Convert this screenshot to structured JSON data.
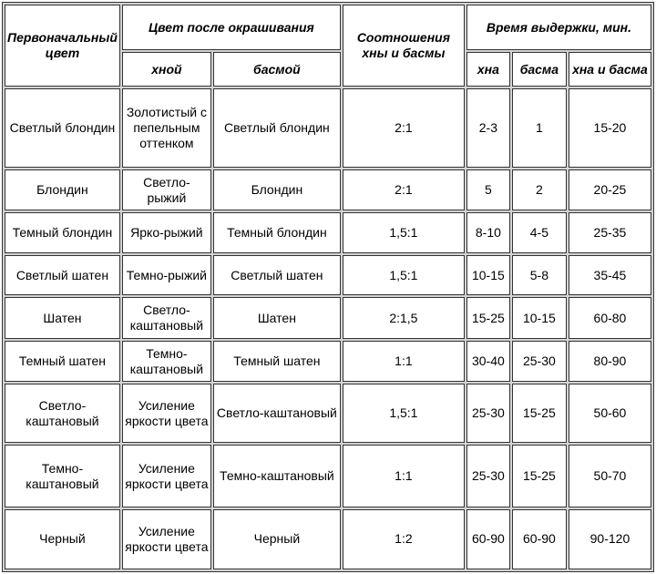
{
  "headers": {
    "original_color": "Первоначальный цвет",
    "color_after": "Цвет после окрашивания",
    "henna": "хной",
    "basma": "басмой",
    "ratio": "Соотношения хны и басмы",
    "time": "Время выдержки, мин.",
    "time_henna": "хна",
    "time_basma": "басма",
    "time_both": "хна и басма"
  },
  "rows": [
    {
      "original": "Светлый блондин",
      "henna": "Золотистый с пепельным оттенком",
      "basma": "Светлый блондин",
      "ratio": "2:1",
      "t_henna": "2-3",
      "t_basma": "1",
      "t_both": "15-20"
    },
    {
      "original": "Блондин",
      "henna": "Светло-рыжий",
      "basma": "Блондин",
      "ratio": "2:1",
      "t_henna": "5",
      "t_basma": "2",
      "t_both": "20-25"
    },
    {
      "original": "Темный блондин",
      "henna": "Ярко-рыжий",
      "basma": "Темный блондин",
      "ratio": "1,5:1",
      "t_henna": "8-10",
      "t_basma": "4-5",
      "t_both": "25-35"
    },
    {
      "original": "Светлый шатен",
      "henna": "Темно-рыжий",
      "basma": "Светлый шатен",
      "ratio": "1,5:1",
      "t_henna": "10-15",
      "t_basma": "5-8",
      "t_both": "35-45"
    },
    {
      "original": "Шатен",
      "henna": "Светло-каштановый",
      "basma": "Шатен",
      "ratio": "2:1,5",
      "t_henna": "15-25",
      "t_basma": "10-15",
      "t_both": "60-80"
    },
    {
      "original": "Темный шатен",
      "henna": "Темно-каштановый",
      "basma": "Темный шатен",
      "ratio": "1:1",
      "t_henna": "30-40",
      "t_basma": "25-30",
      "t_both": "80-90"
    },
    {
      "original": "Светло-каштановый",
      "henna": "Усиление яркости цвета",
      "basma": "Светло-каштановый",
      "ratio": "1,5:1",
      "t_henna": "25-30",
      "t_basma": "15-25",
      "t_both": "50-60"
    },
    {
      "original": "Темно-каштановый",
      "henna": "Усиление яркости цвета",
      "basma": "Темно-каштановый",
      "ratio": "1:1",
      "t_henna": "25-30",
      "t_basma": "15-25",
      "t_both": "50-70"
    },
    {
      "original": "Черный",
      "henna": "Усиление яркости цвета",
      "basma": "Черный",
      "ratio": "1:2",
      "t_henna": "60-90",
      "t_basma": "60-90",
      "t_both": "90-120"
    }
  ]
}
